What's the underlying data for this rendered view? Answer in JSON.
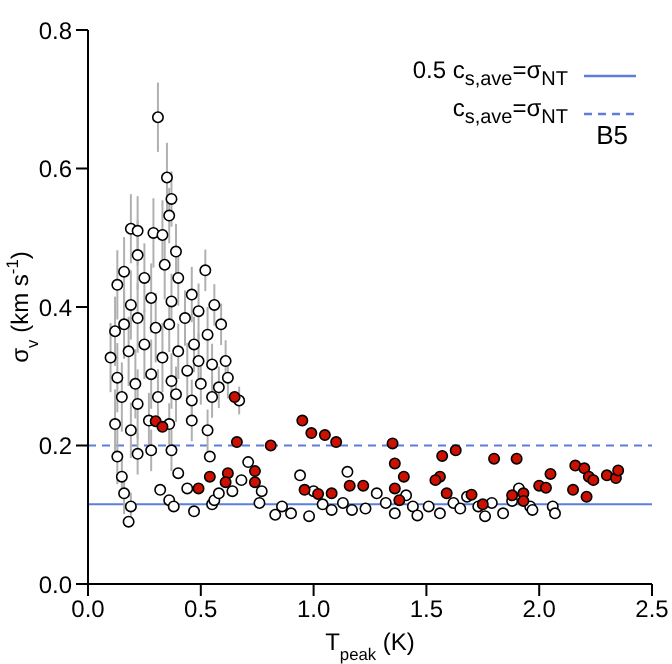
{
  "chart_data": {
    "type": "scatter",
    "xlabel": "T$_{peak}$ (K)",
    "ylabel": "σ$_{v}$ (km s$^{-1}$)",
    "xlim": [
      0,
      2.5
    ],
    "ylim": [
      0,
      0.8
    ],
    "xticks": [
      {
        "value": 0,
        "label": "0.0"
      },
      {
        "value": 0.5,
        "label": "0.5"
      },
      {
        "value": 1,
        "label": "1.0"
      },
      {
        "value": 1.5,
        "label": "1.5"
      },
      {
        "value": 2,
        "label": "2.0"
      },
      {
        "value": 2.5,
        "label": "2.5"
      }
    ],
    "yticks": [
      {
        "value": 0,
        "label": "0.0"
      },
      {
        "value": 0.2,
        "label": "0.2"
      },
      {
        "value": 0.4,
        "label": "0.4"
      },
      {
        "value": 0.6,
        "label": "0.6"
      },
      {
        "value": 0.8,
        "label": "0.8"
      }
    ],
    "marker": "circle",
    "legend": "top right",
    "grid": false,
    "ref_lines": [
      {
        "axis": "y",
        "value": 0.115,
        "label": "0.5 c$_{s,ave}$=σ$_{NT}$",
        "color": "#5b7fdb",
        "line_style": "solid"
      },
      {
        "axis": "y",
        "value": 0.2,
        "label": "c$_{s,ave}$=σ$_{NT}$",
        "color": "#5b7fdb",
        "line_style": "dashed"
      }
    ],
    "annotations": [
      "B5"
    ],
    "series": [
      {
        "color": "#ffffff",
        "x": [
          0.31,
          0.35,
          0.36,
          0.37,
          0.52,
          0.56,
          0.59,
          0.53,
          0.46,
          0.49,
          0.19,
          0.22,
          0.29,
          0.33,
          0.22,
          0.13,
          0.16,
          0.25,
          0.34,
          0.39,
          0.4,
          0.19,
          0.28,
          0.37,
          0.12,
          0.16,
          0.22,
          0.3,
          0.36,
          0.43,
          0.1,
          0.18,
          0.25,
          0.33,
          0.4,
          0.47,
          0.49,
          0.55,
          0.61,
          0.13,
          0.21,
          0.28,
          0.37,
          0.44,
          0.5,
          0.58,
          0.62,
          0.15,
          0.22,
          0.31,
          0.39,
          0.46,
          0.55,
          0.67,
          0.12,
          0.19,
          0.27,
          0.36,
          0.46,
          0.53,
          0.13,
          0.22,
          0.28,
          0.37,
          0.15,
          0.16,
          0.19,
          0.18,
          0.32,
          0.36,
          0.38,
          0.4,
          0.44,
          0.47,
          0.54,
          0.55,
          0.56,
          0.58,
          0.64,
          0.68,
          0.71,
          0.76,
          0.77,
          0.83,
          0.86,
          0.9,
          0.94,
          0.98,
          1.0,
          1.04,
          1.08,
          1.13,
          1.15,
          1.17,
          1.23,
          1.28,
          1.32,
          1.36,
          1.41,
          1.44,
          1.46,
          1.51,
          1.56,
          1.62,
          1.65,
          1.68,
          1.73,
          1.76,
          1.79,
          1.84,
          1.88,
          1.91,
          1.96,
          1.97,
          2.06,
          2.07
        ],
        "values": [
          0.674,
          0.587,
          0.532,
          0.556,
          0.453,
          0.403,
          0.375,
          0.36,
          0.418,
          0.394,
          0.513,
          0.51,
          0.507,
          0.504,
          0.475,
          0.432,
          0.451,
          0.442,
          0.461,
          0.48,
          0.442,
          0.403,
          0.413,
          0.408,
          0.365,
          0.375,
          0.384,
          0.37,
          0.375,
          0.384,
          0.327,
          0.336,
          0.346,
          0.327,
          0.336,
          0.346,
          0.322,
          0.317,
          0.322,
          0.298,
          0.289,
          0.303,
          0.293,
          0.308,
          0.289,
          0.284,
          0.298,
          0.27,
          0.26,
          0.27,
          0.274,
          0.265,
          0.27,
          0.265,
          0.231,
          0.222,
          0.236,
          0.231,
          0.236,
          0.222,
          0.184,
          0.188,
          0.193,
          0.193,
          0.155,
          0.131,
          0.112,
          0.09,
          0.136,
          0.121,
          0.112,
          0.16,
          0.138,
          0.105,
          0.184,
          0.115,
          0.121,
          0.131,
          0.134,
          0.15,
          0.176,
          0.117,
          0.134,
          0.1,
          0.112,
          0.102,
          0.157,
          0.098,
          0.134,
          0.115,
          0.107,
          0.117,
          0.162,
          0.107,
          0.109,
          0.131,
          0.117,
          0.102,
          0.128,
          0.112,
          0.099,
          0.112,
          0.102,
          0.117,
          0.109,
          0.126,
          0.112,
          0.098,
          0.117,
          0.102,
          0.12,
          0.138,
          0.112,
          0.107,
          0.112,
          0.102
        ],
        "errors": [
          0.05,
          0.05,
          0.04,
          0.04,
          0.03,
          0.03,
          0.03,
          0.04,
          0.04,
          0.04,
          0.05,
          0.05,
          0.05,
          0.05,
          0.05,
          0.05,
          0.05,
          0.05,
          0.05,
          0.04,
          0.04,
          0.05,
          0.05,
          0.04,
          0.05,
          0.05,
          0.05,
          0.05,
          0.04,
          0.04,
          0.05,
          0.05,
          0.05,
          0.05,
          0.04,
          0.04,
          0.04,
          0.03,
          0.03,
          0.05,
          0.05,
          0.05,
          0.04,
          0.04,
          0.03,
          0.03,
          0.03,
          0.05,
          0.05,
          0.04,
          0.04,
          0.03,
          0.03,
          0.02,
          0.05,
          0.04,
          0.04,
          0.03,
          0.03,
          0.03,
          0.04,
          0.03,
          0.03,
          0.03,
          0.03,
          0.03,
          0.02,
          null,
          null,
          null,
          null,
          null,
          null,
          null,
          null,
          null,
          null,
          null,
          null,
          null,
          null,
          null,
          null,
          null,
          null,
          null,
          null,
          null,
          null,
          null,
          null,
          null,
          null,
          null,
          null,
          null,
          null,
          null,
          null,
          null,
          null,
          null,
          null,
          null,
          null,
          null,
          null,
          null,
          null,
          null,
          null,
          null,
          null,
          null,
          null,
          null
        ]
      },
      {
        "color": "#cc1100",
        "x": [
          0.3,
          0.33,
          0.65,
          0.66,
          0.54,
          0.62,
          0.61,
          0.74,
          0.74,
          0.49,
          0.81,
          0.95,
          0.99,
          1.05,
          1.1,
          0.96,
          1.02,
          1.08,
          1.16,
          1.22,
          1.35,
          1.36,
          1.36,
          1.4,
          1.38,
          1.57,
          1.63,
          1.56,
          1.54,
          1.59,
          1.7,
          1.75,
          1.8,
          1.9,
          1.88,
          1.93,
          1.93,
          2.0,
          2.03,
          2.05,
          2.15,
          2.16,
          2.2,
          2.22,
          2.21,
          2.24,
          2.3,
          2.34,
          2.35
        ],
        "values": [
          0.235,
          0.227,
          0.27,
          0.205,
          0.155,
          0.16,
          0.147,
          0.163,
          0.147,
          0.138,
          0.2,
          0.236,
          0.218,
          0.215,
          0.205,
          0.136,
          0.13,
          0.131,
          0.142,
          0.142,
          0.203,
          0.174,
          0.138,
          0.155,
          0.121,
          0.185,
          0.193,
          0.155,
          0.15,
          0.131,
          0.129,
          0.115,
          0.181,
          0.181,
          0.128,
          0.131,
          0.12,
          0.142,
          0.139,
          0.159,
          0.136,
          0.171,
          0.167,
          0.155,
          0.126,
          0.15,
          0.157,
          0.153,
          0.164
        ]
      }
    ]
  }
}
